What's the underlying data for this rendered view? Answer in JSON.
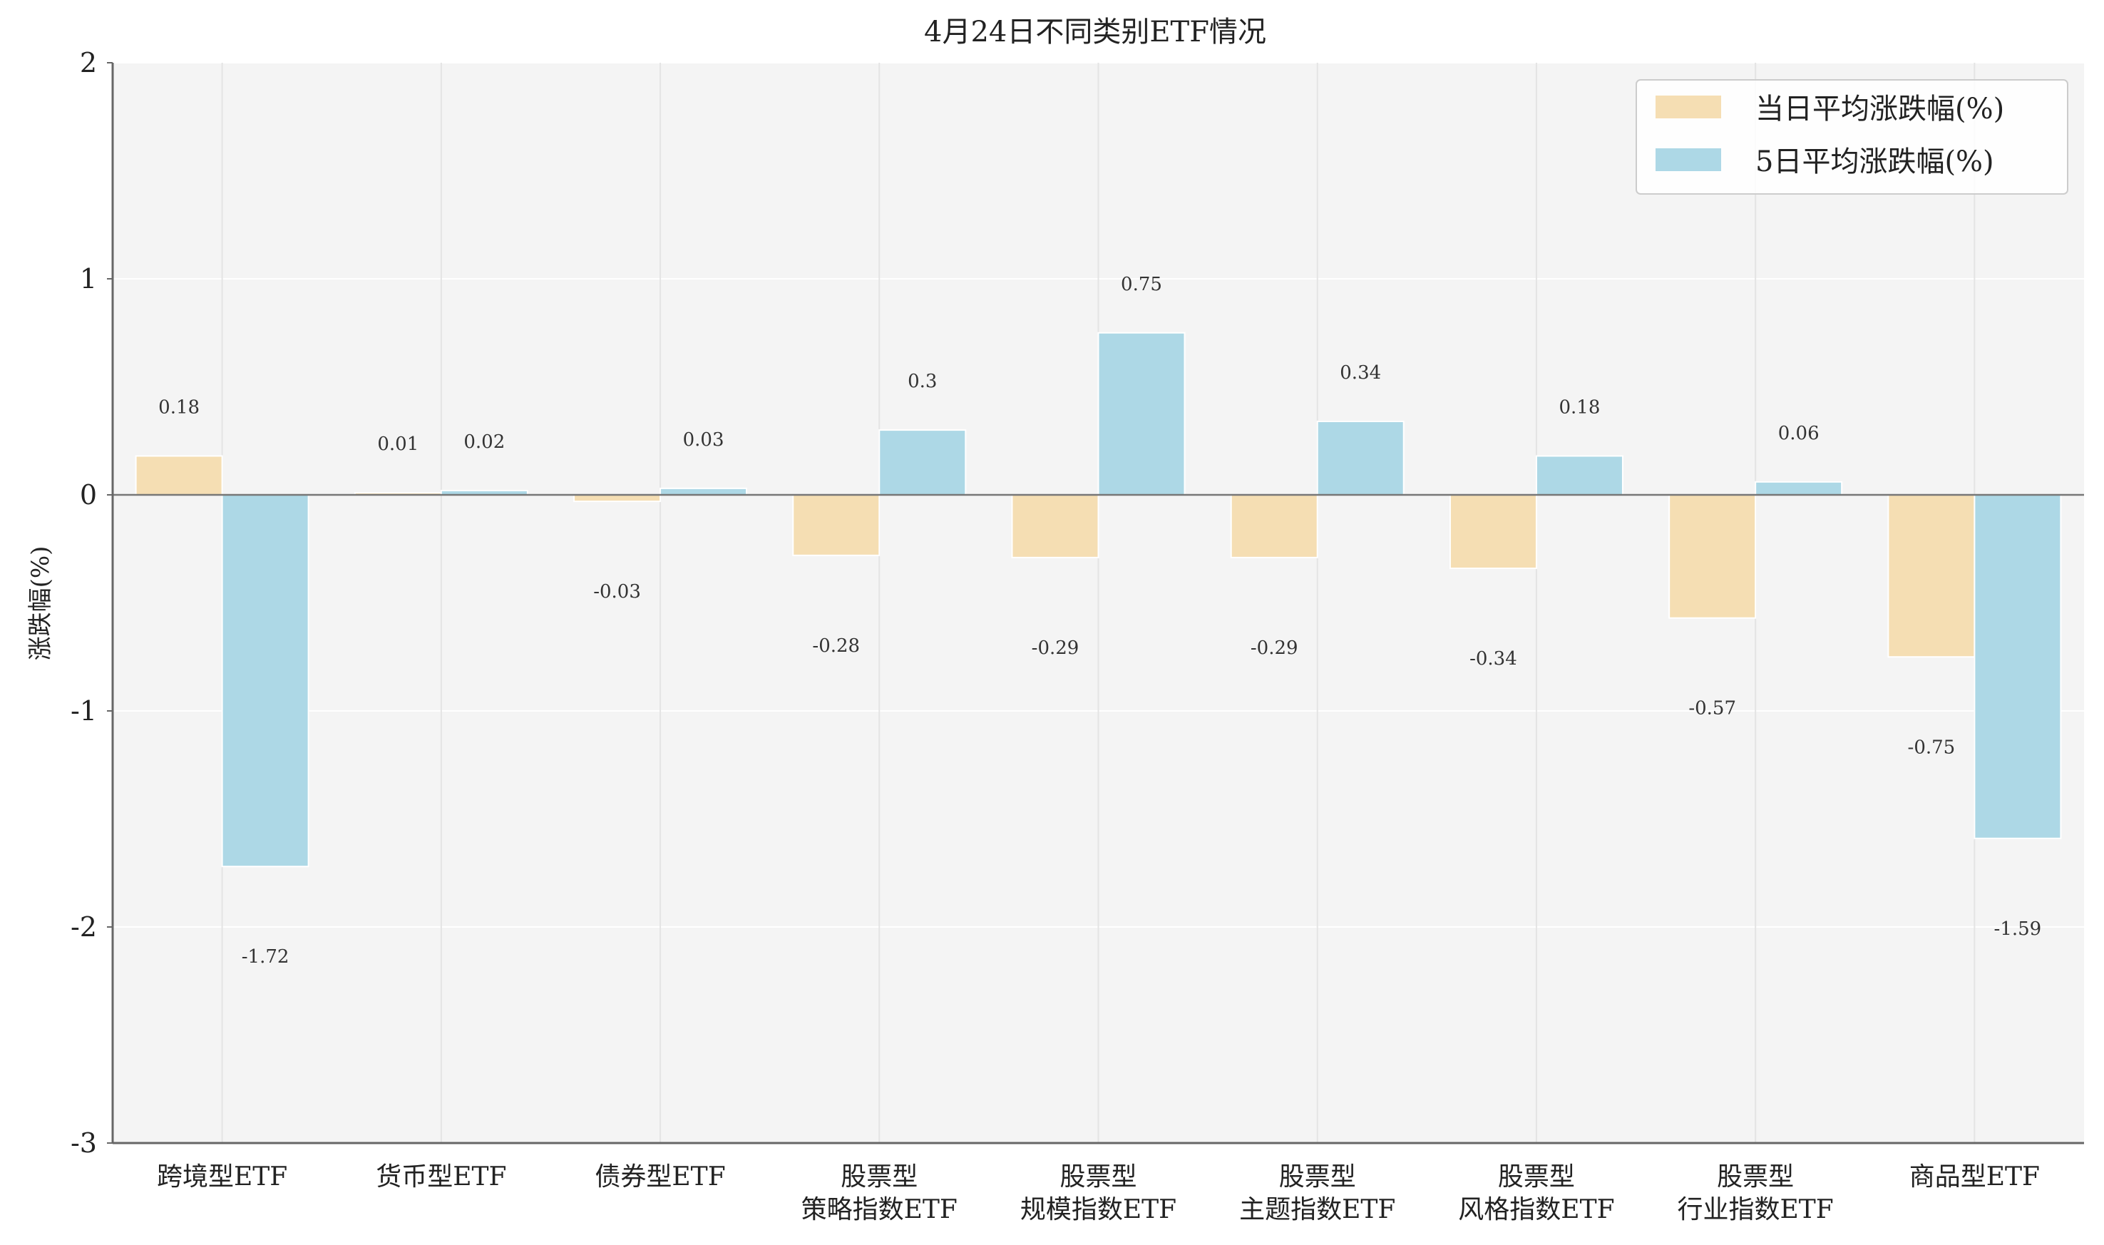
{
  "chart_data": {
    "type": "bar",
    "title": "4月24日不同类别ETF情况",
    "xlabel": "",
    "ylabel": "涨跌幅(%)",
    "ylim": [
      -3,
      2
    ],
    "yticks": [
      2,
      1,
      0,
      -1,
      -2,
      -3
    ],
    "grid": true,
    "legend_position": "top-right",
    "categories": [
      [
        "跨境型ETF"
      ],
      [
        "货币型ETF"
      ],
      [
        "债券型ETF"
      ],
      [
        "股票型",
        "策略指数ETF"
      ],
      [
        "股票型",
        "规模指数ETF"
      ],
      [
        "股票型",
        "主题指数ETF"
      ],
      [
        "股票型",
        "风格指数ETF"
      ],
      [
        "股票型",
        "行业指数ETF"
      ],
      [
        "商品型ETF"
      ]
    ],
    "series": [
      {
        "name": "当日平均涨跌幅(%)",
        "color": "#f5deb3",
        "values": [
          0.18,
          0.01,
          -0.03,
          -0.28,
          -0.29,
          -0.29,
          -0.34,
          -0.57,
          -0.75
        ]
      },
      {
        "name": "5日平均涨跌幅(%)",
        "color": "#add8e6",
        "values": [
          -1.72,
          0.02,
          0.03,
          0.3,
          0.75,
          0.34,
          0.18,
          0.06,
          -1.59
        ]
      }
    ]
  }
}
